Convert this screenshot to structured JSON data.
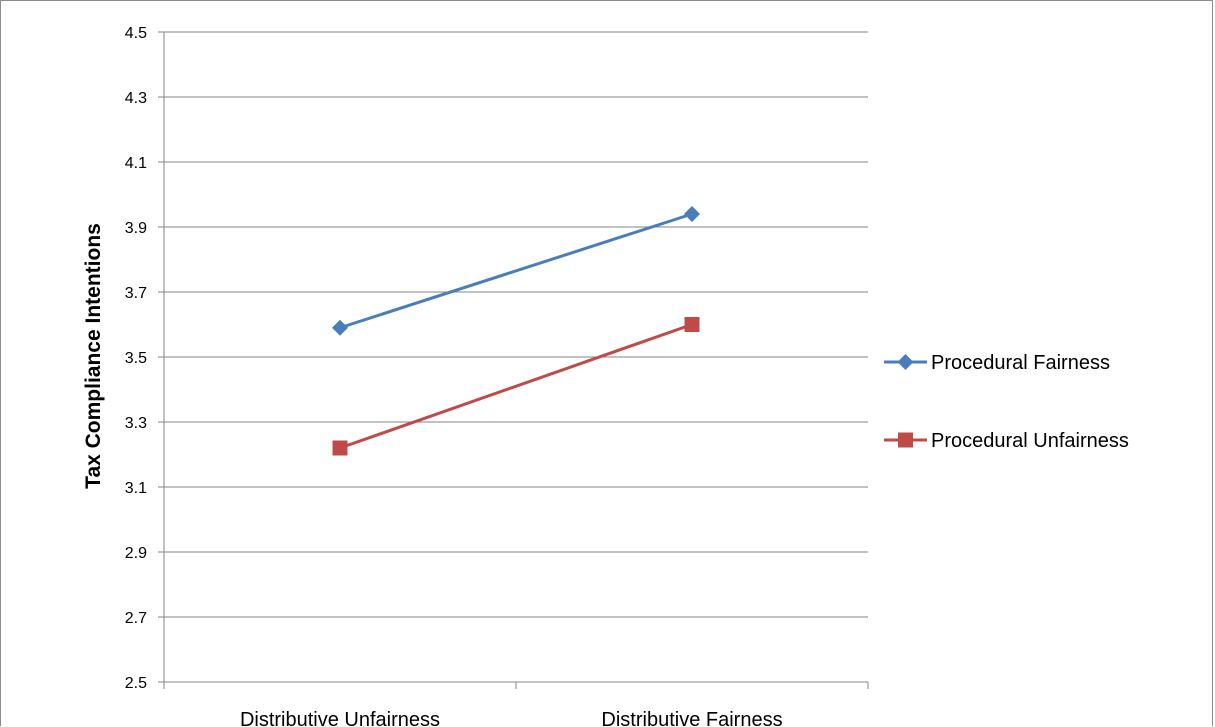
{
  "chart_data": {
    "type": "line",
    "ylabel": "Tax Compliance Intentions",
    "categories": [
      "Distributive Unfairness",
      "Distributive Fairness"
    ],
    "ylim": [
      2.5,
      4.5
    ],
    "yticks": [
      "2.5",
      "2.7",
      "2.9",
      "3.1",
      "3.3",
      "3.5",
      "3.7",
      "3.9",
      "4.1",
      "4.3",
      "4.5"
    ],
    "grid": "horizontal",
    "legend_position": "right",
    "series": [
      {
        "name": "Procedural Fairness",
        "values": [
          3.59,
          3.94
        ],
        "color": "#4a7ebb",
        "marker": "diamond"
      },
      {
        "name": "Procedural Unfairness",
        "values": [
          3.22,
          3.6
        ],
        "color": "#be4b48",
        "marker": "square"
      }
    ]
  }
}
